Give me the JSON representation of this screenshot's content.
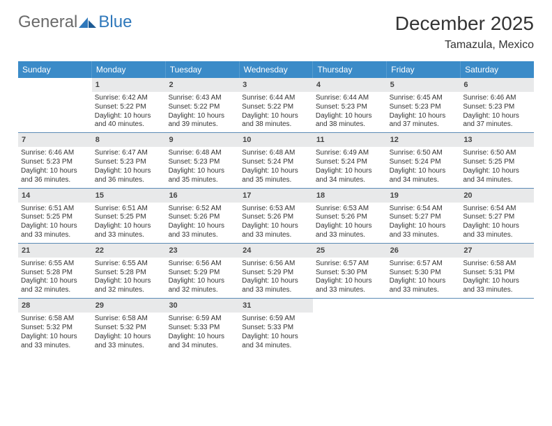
{
  "logo": {
    "part1": "General",
    "part2": "Blue"
  },
  "header": {
    "title": "December 2025",
    "location": "Tamazula, Mexico"
  },
  "colors": {
    "header_blue": "#3b8bc8",
    "rule_blue": "#5a8ab5",
    "daynum_bg": "#e8e9ea",
    "text": "#333333"
  },
  "dow": [
    "Sunday",
    "Monday",
    "Tuesday",
    "Wednesday",
    "Thursday",
    "Friday",
    "Saturday"
  ],
  "weeks": [
    [
      {
        "n": "",
        "sunrise": "",
        "sunset": "",
        "daylight": ""
      },
      {
        "n": "1",
        "sunrise": "Sunrise: 6:42 AM",
        "sunset": "Sunset: 5:22 PM",
        "daylight": "Daylight: 10 hours and 40 minutes."
      },
      {
        "n": "2",
        "sunrise": "Sunrise: 6:43 AM",
        "sunset": "Sunset: 5:22 PM",
        "daylight": "Daylight: 10 hours and 39 minutes."
      },
      {
        "n": "3",
        "sunrise": "Sunrise: 6:44 AM",
        "sunset": "Sunset: 5:22 PM",
        "daylight": "Daylight: 10 hours and 38 minutes."
      },
      {
        "n": "4",
        "sunrise": "Sunrise: 6:44 AM",
        "sunset": "Sunset: 5:23 PM",
        "daylight": "Daylight: 10 hours and 38 minutes."
      },
      {
        "n": "5",
        "sunrise": "Sunrise: 6:45 AM",
        "sunset": "Sunset: 5:23 PM",
        "daylight": "Daylight: 10 hours and 37 minutes."
      },
      {
        "n": "6",
        "sunrise": "Sunrise: 6:46 AM",
        "sunset": "Sunset: 5:23 PM",
        "daylight": "Daylight: 10 hours and 37 minutes."
      }
    ],
    [
      {
        "n": "7",
        "sunrise": "Sunrise: 6:46 AM",
        "sunset": "Sunset: 5:23 PM",
        "daylight": "Daylight: 10 hours and 36 minutes."
      },
      {
        "n": "8",
        "sunrise": "Sunrise: 6:47 AM",
        "sunset": "Sunset: 5:23 PM",
        "daylight": "Daylight: 10 hours and 36 minutes."
      },
      {
        "n": "9",
        "sunrise": "Sunrise: 6:48 AM",
        "sunset": "Sunset: 5:23 PM",
        "daylight": "Daylight: 10 hours and 35 minutes."
      },
      {
        "n": "10",
        "sunrise": "Sunrise: 6:48 AM",
        "sunset": "Sunset: 5:24 PM",
        "daylight": "Daylight: 10 hours and 35 minutes."
      },
      {
        "n": "11",
        "sunrise": "Sunrise: 6:49 AM",
        "sunset": "Sunset: 5:24 PM",
        "daylight": "Daylight: 10 hours and 34 minutes."
      },
      {
        "n": "12",
        "sunrise": "Sunrise: 6:50 AM",
        "sunset": "Sunset: 5:24 PM",
        "daylight": "Daylight: 10 hours and 34 minutes."
      },
      {
        "n": "13",
        "sunrise": "Sunrise: 6:50 AM",
        "sunset": "Sunset: 5:25 PM",
        "daylight": "Daylight: 10 hours and 34 minutes."
      }
    ],
    [
      {
        "n": "14",
        "sunrise": "Sunrise: 6:51 AM",
        "sunset": "Sunset: 5:25 PM",
        "daylight": "Daylight: 10 hours and 33 minutes."
      },
      {
        "n": "15",
        "sunrise": "Sunrise: 6:51 AM",
        "sunset": "Sunset: 5:25 PM",
        "daylight": "Daylight: 10 hours and 33 minutes."
      },
      {
        "n": "16",
        "sunrise": "Sunrise: 6:52 AM",
        "sunset": "Sunset: 5:26 PM",
        "daylight": "Daylight: 10 hours and 33 minutes."
      },
      {
        "n": "17",
        "sunrise": "Sunrise: 6:53 AM",
        "sunset": "Sunset: 5:26 PM",
        "daylight": "Daylight: 10 hours and 33 minutes."
      },
      {
        "n": "18",
        "sunrise": "Sunrise: 6:53 AM",
        "sunset": "Sunset: 5:26 PM",
        "daylight": "Daylight: 10 hours and 33 minutes."
      },
      {
        "n": "19",
        "sunrise": "Sunrise: 6:54 AM",
        "sunset": "Sunset: 5:27 PM",
        "daylight": "Daylight: 10 hours and 33 minutes."
      },
      {
        "n": "20",
        "sunrise": "Sunrise: 6:54 AM",
        "sunset": "Sunset: 5:27 PM",
        "daylight": "Daylight: 10 hours and 33 minutes."
      }
    ],
    [
      {
        "n": "21",
        "sunrise": "Sunrise: 6:55 AM",
        "sunset": "Sunset: 5:28 PM",
        "daylight": "Daylight: 10 hours and 32 minutes."
      },
      {
        "n": "22",
        "sunrise": "Sunrise: 6:55 AM",
        "sunset": "Sunset: 5:28 PM",
        "daylight": "Daylight: 10 hours and 32 minutes."
      },
      {
        "n": "23",
        "sunrise": "Sunrise: 6:56 AM",
        "sunset": "Sunset: 5:29 PM",
        "daylight": "Daylight: 10 hours and 32 minutes."
      },
      {
        "n": "24",
        "sunrise": "Sunrise: 6:56 AM",
        "sunset": "Sunset: 5:29 PM",
        "daylight": "Daylight: 10 hours and 33 minutes."
      },
      {
        "n": "25",
        "sunrise": "Sunrise: 6:57 AM",
        "sunset": "Sunset: 5:30 PM",
        "daylight": "Daylight: 10 hours and 33 minutes."
      },
      {
        "n": "26",
        "sunrise": "Sunrise: 6:57 AM",
        "sunset": "Sunset: 5:30 PM",
        "daylight": "Daylight: 10 hours and 33 minutes."
      },
      {
        "n": "27",
        "sunrise": "Sunrise: 6:58 AM",
        "sunset": "Sunset: 5:31 PM",
        "daylight": "Daylight: 10 hours and 33 minutes."
      }
    ],
    [
      {
        "n": "28",
        "sunrise": "Sunrise: 6:58 AM",
        "sunset": "Sunset: 5:32 PM",
        "daylight": "Daylight: 10 hours and 33 minutes."
      },
      {
        "n": "29",
        "sunrise": "Sunrise: 6:58 AM",
        "sunset": "Sunset: 5:32 PM",
        "daylight": "Daylight: 10 hours and 33 minutes."
      },
      {
        "n": "30",
        "sunrise": "Sunrise: 6:59 AM",
        "sunset": "Sunset: 5:33 PM",
        "daylight": "Daylight: 10 hours and 34 minutes."
      },
      {
        "n": "31",
        "sunrise": "Sunrise: 6:59 AM",
        "sunset": "Sunset: 5:33 PM",
        "daylight": "Daylight: 10 hours and 34 minutes."
      },
      {
        "n": "",
        "sunrise": "",
        "sunset": "",
        "daylight": ""
      },
      {
        "n": "",
        "sunrise": "",
        "sunset": "",
        "daylight": ""
      },
      {
        "n": "",
        "sunrise": "",
        "sunset": "",
        "daylight": ""
      }
    ]
  ]
}
